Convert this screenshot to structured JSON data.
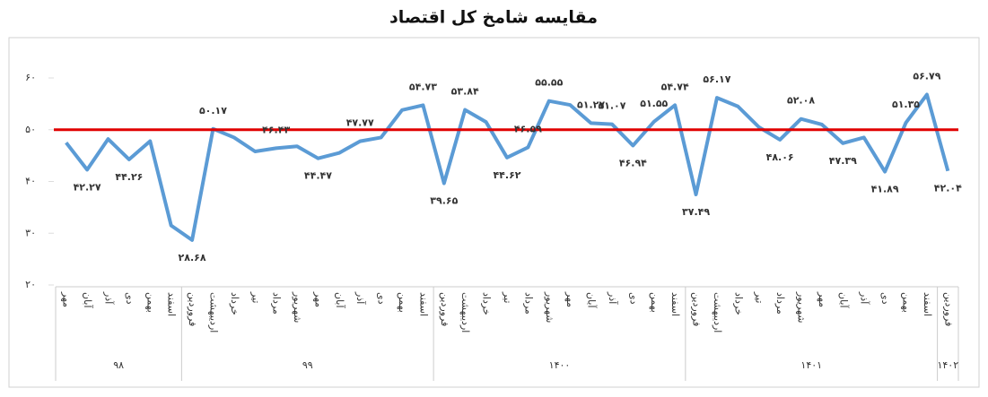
{
  "chart_data": {
    "type": "line",
    "title": "مقایسه شامخ کل اقتصاد",
    "groups": [
      {
        "label": "۹۸",
        "categories": [
          "مهر",
          "آبان",
          "آذر",
          "دی",
          "بهمن",
          "اسفند"
        ]
      },
      {
        "label": "۹۹",
        "categories": [
          "فروردین",
          "اردیبهشت",
          "خرداد",
          "تیر",
          "مرداد",
          "شهریور",
          "مهر",
          "آبان",
          "آذر",
          "دی",
          "بهمن",
          "اسفند"
        ]
      },
      {
        "label": "۱۴۰۰",
        "categories": [
          "فروردین",
          "اردیبهشت",
          "خرداد",
          "تیر",
          "مرداد",
          "شهریور",
          "مهر",
          "آبان",
          "آذر",
          "دی",
          "بهمن",
          "اسفند"
        ]
      },
      {
        "label": "۱۴۰۱",
        "categories": [
          "فروردین",
          "اردیبهشت",
          "خرداد",
          "تیر",
          "مرداد",
          "شهریور",
          "مهر",
          "آبان",
          "آذر",
          "دی",
          "بهمن",
          "اسفند"
        ]
      },
      {
        "label": "۱۴۰۲",
        "categories": [
          "فروردین"
        ]
      }
    ],
    "values": [
      47.5,
      42.27,
      48.2,
      44.26,
      47.8,
      31.5,
      28.68,
      50.17,
      48.5,
      45.8,
      46.43,
      46.8,
      44.47,
      45.5,
      47.77,
      48.5,
      53.8,
      54.73,
      39.65,
      53.84,
      51.5,
      44.62,
      46.59,
      55.55,
      54.8,
      51.27,
      51.07,
      46.94,
      51.55,
      54.74,
      37.49,
      56.17,
      54.5,
      50.5,
      48.06,
      52.08,
      51,
      47.39,
      48.5,
      41.89,
      51.35,
      56.79,
      42.04
    ],
    "value_labels": [
      null,
      "۴۲.۲۷",
      null,
      "۴۴.۲۶",
      null,
      null,
      "۲۸.۶۸",
      "۵۰.۱۷",
      null,
      null,
      "۴۶.۴۳",
      null,
      "۴۴.۴۷",
      null,
      "۴۷.۷۷",
      null,
      null,
      "۵۴.۷۳",
      "۳۹.۶۵",
      "۵۳.۸۴",
      null,
      "۴۴.۶۲",
      "۴۶.۵۹",
      "۵۵.۵۵",
      null,
      "۵۱.۲۷",
      "۵۱.۰۷",
      "۴۶.۹۴",
      "۵۱.۵۵",
      "۵۴.۷۴",
      "۳۷.۴۹",
      "۵۶.۱۷",
      null,
      null,
      "۴۸.۰۶",
      "۵۲.۰۸",
      null,
      "۴۷.۳۹",
      null,
      "۴۱.۸۹",
      "۵۱.۳۵",
      "۵۶.۷۹",
      "۴۲.۰۴"
    ],
    "color": "#5b9bd5",
    "ylim": [
      20,
      60
    ],
    "yticks": [
      {
        "value": 20,
        "label": "۲۰"
      },
      {
        "value": 30,
        "label": "۳۰"
      },
      {
        "value": 40,
        "label": "۴۰"
      },
      {
        "value": 50,
        "label": "۵۰"
      },
      {
        "value": 60,
        "label": "۶۰"
      }
    ],
    "reference_line": {
      "value": 50,
      "color": "#e00000"
    }
  }
}
